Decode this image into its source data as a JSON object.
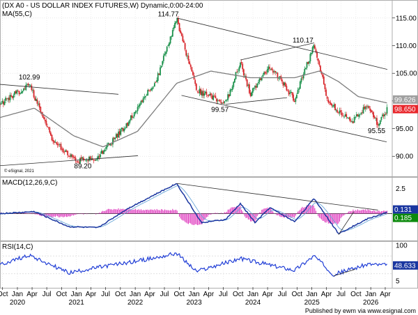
{
  "titles": {
    "main": "(DX A0 - US DOLLAR INDEX FUTURES,W) Dynamic,0:00-24:00",
    "ma": "MA(55,C)",
    "macd": "MACD(12,26,9,C)",
    "rsi": "RSI(14,C)",
    "watermark": "© eSignal, 2021"
  },
  "footer": "Published by ewm via www.esignal.com",
  "colors": {
    "up": "#19904a",
    "down": "#d8262b",
    "ma": "#7d7d7d",
    "macd": "#1a36a0",
    "signal": "#6aa7d8",
    "hist": "#e040c0",
    "rsi": "#1f3dd6",
    "trend": "#2b2b2b",
    "badge_dark": "#1a36a0",
    "badge_green": "#0c8a0c",
    "badge_red": "#e8262b",
    "badge_grey": "#a0a0a0"
  },
  "chart_data": [
    {
      "type": "candlestick",
      "title": "(DX A0 - US DOLLAR INDEX FUTURES,W) Dynamic,0:00-24:00",
      "ylim": [
        86.5,
        118
      ],
      "y_ticks": [
        "90.00",
        "95.00",
        "100.00",
        "105.00",
        "110.00",
        "115.00"
      ],
      "x_month_labels": [
        "Oct",
        "Jan",
        "Apr",
        "Jul",
        "Oct",
        "Jan",
        "Apr",
        "Jul",
        "Oct",
        "Jan",
        "Apr",
        "Jul",
        "Oct",
        "Jan",
        "Apr",
        "Jul",
        "Oct",
        "Jan",
        "Apr",
        "Jul",
        "Oct",
        "Jan",
        "Apr",
        "Jul",
        "Oct",
        "Jan",
        "Apr"
      ],
      "x_year_labels": [
        "2020",
        "2021",
        "2022",
        "2023",
        "2024",
        "2025",
        "2026"
      ],
      "price_path": [
        {
          "date": "2019-09",
          "close": 99.4
        },
        {
          "date": "2020-03",
          "close": 102.99
        },
        {
          "date": "2020-08",
          "close": 92.5
        },
        {
          "date": "2021-01",
          "close": 89.2
        },
        {
          "date": "2021-05",
          "close": 89.8
        },
        {
          "date": "2021-11",
          "close": 96.0
        },
        {
          "date": "2022-05",
          "close": 104.0
        },
        {
          "date": "2022-09",
          "close": 114.77
        },
        {
          "date": "2023-01",
          "close": 102.0
        },
        {
          "date": "2023-07",
          "close": 99.57
        },
        {
          "date": "2023-10",
          "close": 106.9
        },
        {
          "date": "2023-12",
          "close": 101.3
        },
        {
          "date": "2024-04",
          "close": 106.4
        },
        {
          "date": "2024-09",
          "close": 100.3
        },
        {
          "date": "2025-01",
          "close": 110.17
        },
        {
          "date": "2025-04",
          "close": 99.5
        },
        {
          "date": "2025-09",
          "close": 96.4
        },
        {
          "date": "2025-12",
          "close": 99.4
        },
        {
          "date": "2026-02",
          "close": 95.55
        },
        {
          "date": "2026-04",
          "close": 98.65
        }
      ],
      "annotations": [
        {
          "label": "102.99",
          "value": 102.99
        },
        {
          "label": "89.20",
          "value": 89.2
        },
        {
          "label": "114.77",
          "value": 114.77
        },
        {
          "label": "99.57",
          "value": 99.57
        },
        {
          "label": "110.17",
          "value": 110.17
        },
        {
          "label": "95.55",
          "value": 95.55
        }
      ],
      "last_value_badges": [
        {
          "label": "99.626",
          "kind": "grey"
        },
        {
          "label": "98.650",
          "kind": "red"
        }
      ],
      "moving_average": {
        "name": "MA(55,C)",
        "path": [
          {
            "date": "2019-09",
            "value": 97.0
          },
          {
            "date": "2020-04",
            "value": 98.7
          },
          {
            "date": "2020-12",
            "value": 93.7
          },
          {
            "date": "2021-06",
            "value": 91.7
          },
          {
            "date": "2022-01",
            "value": 94.5
          },
          {
            "date": "2022-09",
            "value": 103.2
          },
          {
            "date": "2023-04",
            "value": 105.4
          },
          {
            "date": "2023-12",
            "value": 104.2
          },
          {
            "date": "2024-09",
            "value": 104.2
          },
          {
            "date": "2025-02",
            "value": 105.4
          },
          {
            "date": "2025-06",
            "value": 103.5
          },
          {
            "date": "2025-10",
            "value": 100.8
          },
          {
            "date": "2026-04",
            "value": 99.626
          }
        ]
      }
    },
    {
      "type": "line",
      "title": "MACD(12,26,9,C)",
      "y_ticks": [
        "2.5"
      ],
      "last_value_badges": [
        {
          "label": "0.131",
          "kind": "dark"
        },
        {
          "label": "0.185",
          "kind": "green"
        }
      ],
      "macd_path": [
        {
          "date": "2019-09",
          "value": 0.0
        },
        {
          "date": "2020-04",
          "value": 0.2
        },
        {
          "date": "2020-11",
          "value": -1.3
        },
        {
          "date": "2021-05",
          "value": -1.4
        },
        {
          "date": "2021-11",
          "value": 0.5
        },
        {
          "date": "2022-09",
          "value": 3.0
        },
        {
          "date": "2023-02",
          "value": -0.9
        },
        {
          "date": "2023-07",
          "value": -0.6
        },
        {
          "date": "2023-10",
          "value": 1.0
        },
        {
          "date": "2024-01",
          "value": -0.9
        },
        {
          "date": "2024-04",
          "value": 0.6
        },
        {
          "date": "2024-09",
          "value": -0.8
        },
        {
          "date": "2025-01",
          "value": 1.5
        },
        {
          "date": "2025-06",
          "value": -2.0
        },
        {
          "date": "2025-12",
          "value": -0.5
        },
        {
          "date": "2026-04",
          "value": 0.131
        }
      ]
    },
    {
      "type": "line",
      "title": "RSI(14,C)",
      "ylim": [
        0,
        100
      ],
      "y_ticks": [
        "5",
        "100"
      ],
      "last_value_badges": [
        {
          "label": "48.633",
          "kind": "dark"
        }
      ],
      "rsi_path": [
        {
          "date": "2019-09",
          "value": 50
        },
        {
          "date": "2020-03",
          "value": 72
        },
        {
          "date": "2020-11",
          "value": 32
        },
        {
          "date": "2021-06",
          "value": 46
        },
        {
          "date": "2022-05",
          "value": 66
        },
        {
          "date": "2022-09",
          "value": 76
        },
        {
          "date": "2023-01",
          "value": 35
        },
        {
          "date": "2023-10",
          "value": 64
        },
        {
          "date": "2024-09",
          "value": 38
        },
        {
          "date": "2025-01",
          "value": 70
        },
        {
          "date": "2025-05",
          "value": 28
        },
        {
          "date": "2025-12",
          "value": 52
        },
        {
          "date": "2026-04",
          "value": 48.633
        }
      ]
    }
  ]
}
